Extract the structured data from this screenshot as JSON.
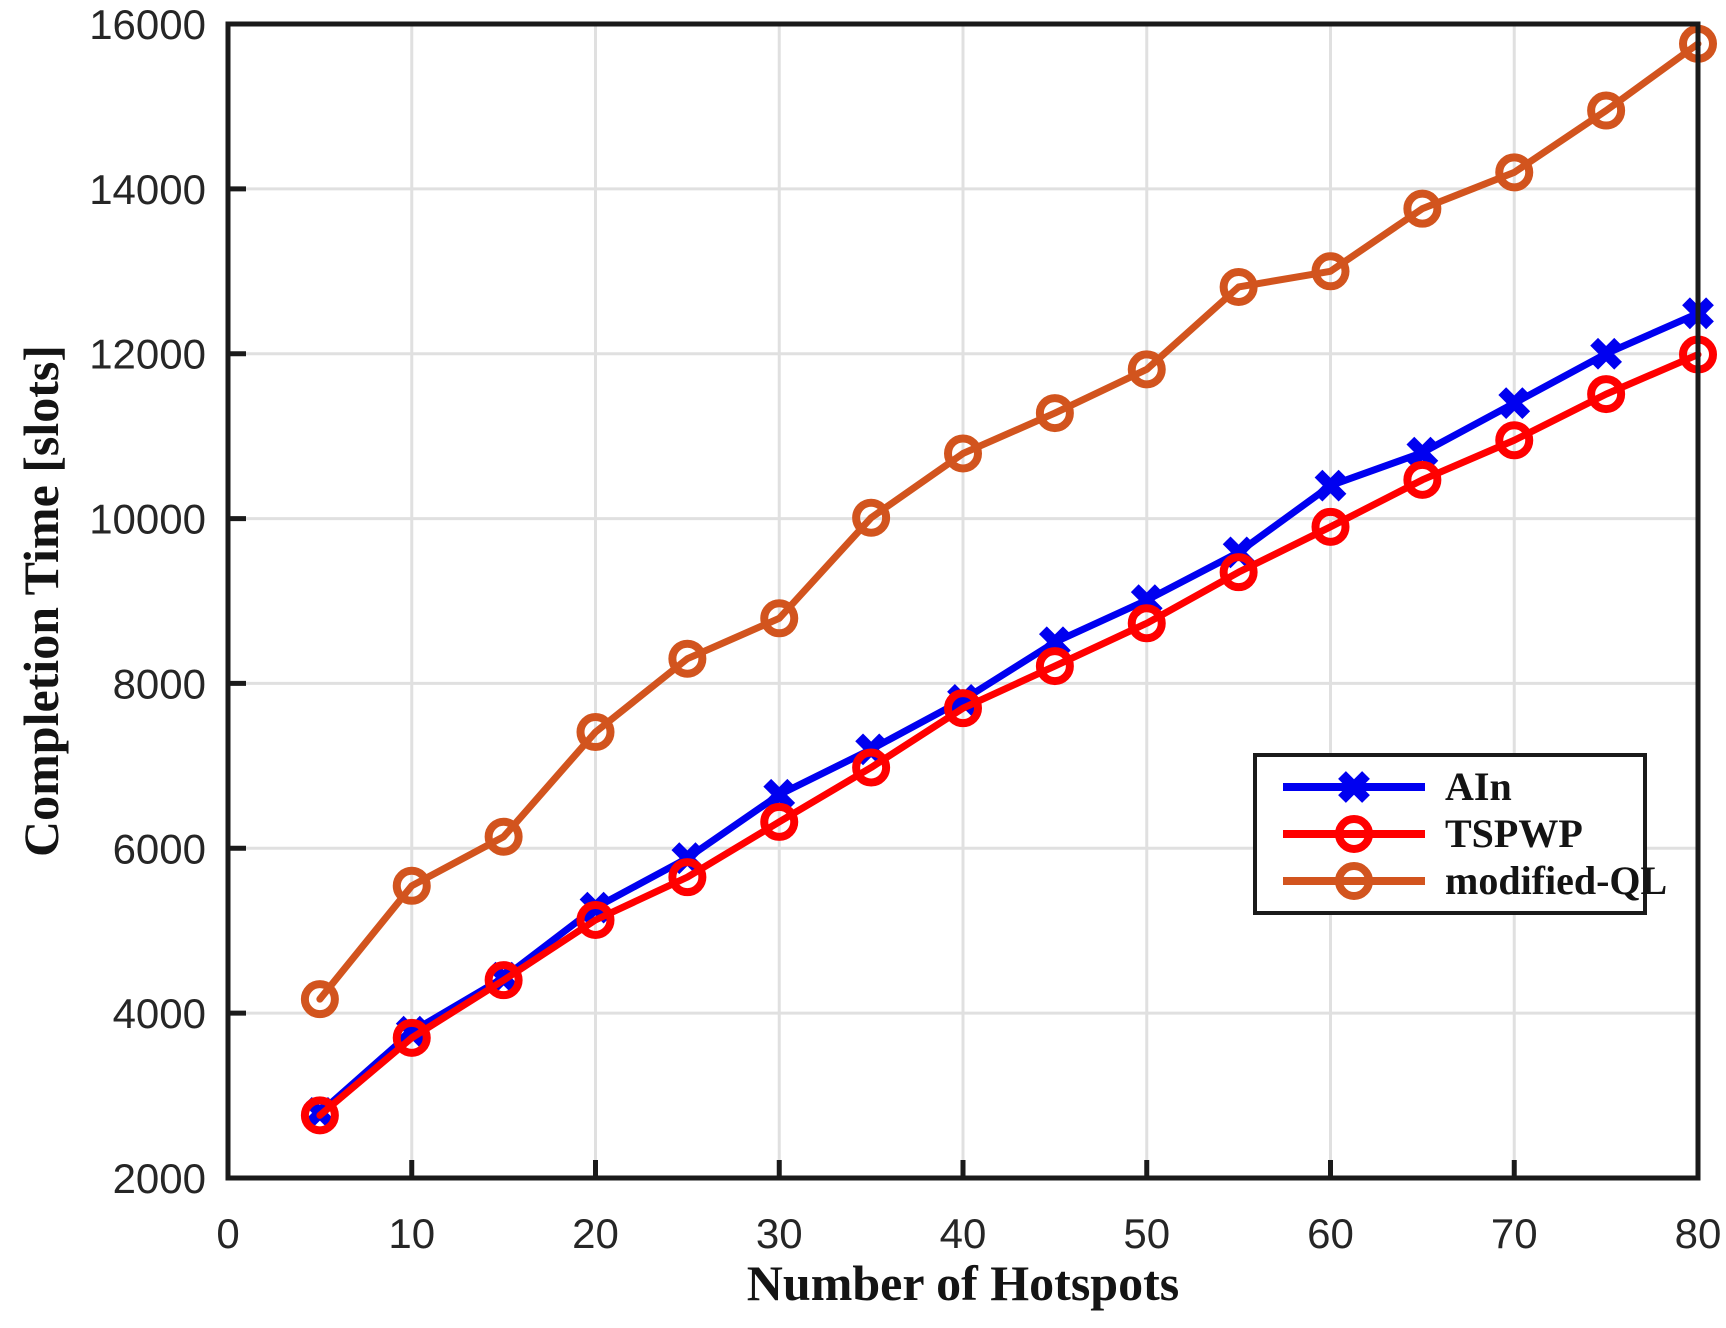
{
  "figure": {
    "background": "#ffffff",
    "axis_color": "#1a1a1a",
    "grid_color": "#e0e0e0",
    "tick_label_color": "#262626"
  },
  "chart_data": {
    "type": "line",
    "title": "",
    "xlabel": "Number of Hotspots",
    "ylabel": "Completion Time [slots]",
    "xlim": [
      0,
      80
    ],
    "ylim": [
      2000,
      16000
    ],
    "x_ticks": [
      0,
      10,
      20,
      30,
      40,
      50,
      60,
      70,
      80
    ],
    "y_ticks": [
      2000,
      4000,
      6000,
      8000,
      10000,
      12000,
      14000,
      16000
    ],
    "grid": true,
    "legend_position": "middle-right",
    "x": [
      5,
      10,
      15,
      20,
      25,
      30,
      35,
      40,
      45,
      50,
      55,
      60,
      65,
      70,
      75,
      80
    ],
    "series": [
      {
        "name": "AIn",
        "color": "#0000f0",
        "marker": "x",
        "values": [
          2790,
          3775,
          4430,
          5280,
          5880,
          6650,
          7200,
          7800,
          8500,
          9010,
          9590,
          10400,
          10800,
          11400,
          12000,
          12490
        ]
      },
      {
        "name": "TSPWP",
        "color": "#ff0000",
        "marker": "o",
        "values": [
          2760,
          3700,
          4400,
          5130,
          5650,
          6320,
          6980,
          7700,
          8210,
          8730,
          9350,
          9900,
          10470,
          10950,
          11510,
          11990
        ]
      },
      {
        "name": "modified-QL",
        "color": "#d2541e",
        "marker": "o",
        "values": [
          4170,
          5545,
          6140,
          7410,
          8300,
          8790,
          10010,
          10790,
          11280,
          11810,
          12810,
          13000,
          13760,
          14200,
          14950,
          15760
        ]
      }
    ]
  }
}
